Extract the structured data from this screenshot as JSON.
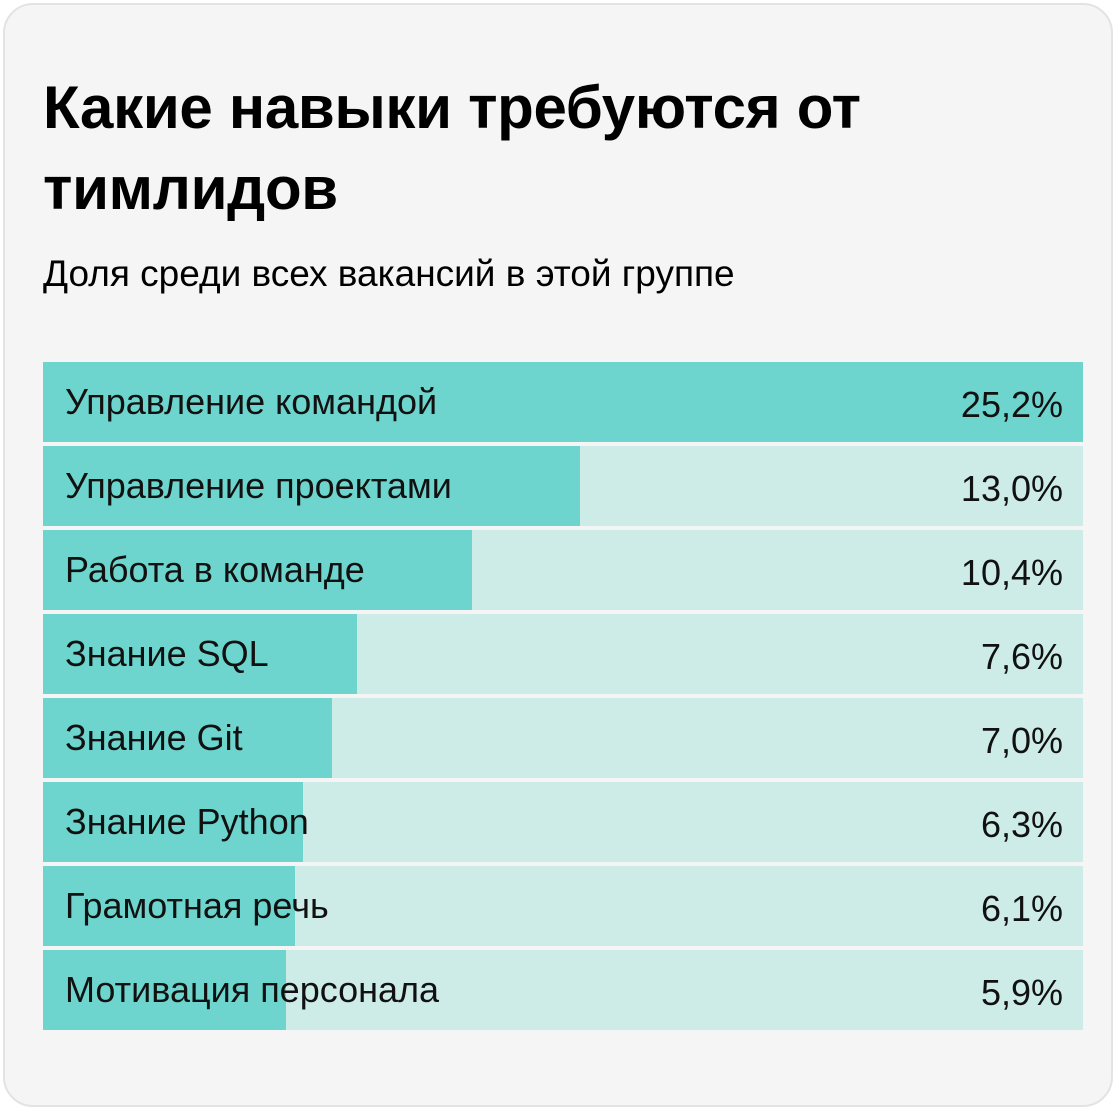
{
  "card": {
    "title": "Какие навыки требуются от тимлидов",
    "subtitle": "Доля среди всех вакансий в этой группе"
  },
  "colors": {
    "background": "#f5f5f5",
    "bar_fill": "#6dd5cd",
    "bar_track": "#cdece8",
    "text": "#000000"
  },
  "chart_data": {
    "type": "bar",
    "orientation": "horizontal",
    "title": "Какие навыки требуются от тимлидов",
    "subtitle": "Доля среди всех вакансий в этой группе",
    "categories": [
      "Управление командой",
      "Управление проектами",
      "Работа в команде",
      "Знание SQL",
      "Знание Git",
      "Знание Python",
      "Грамотная речь",
      "Мотивация персонала"
    ],
    "values": [
      25.2,
      13.0,
      10.4,
      7.6,
      7.0,
      6.3,
      6.1,
      5.9
    ],
    "value_labels": [
      "25,2%",
      "13,0%",
      "10,4%",
      "7,6%",
      "7,0%",
      "6,3%",
      "6,1%",
      "5,9%"
    ],
    "unit": "%",
    "xlim": [
      0,
      25.2
    ],
    "grid": false,
    "legend": "none"
  }
}
